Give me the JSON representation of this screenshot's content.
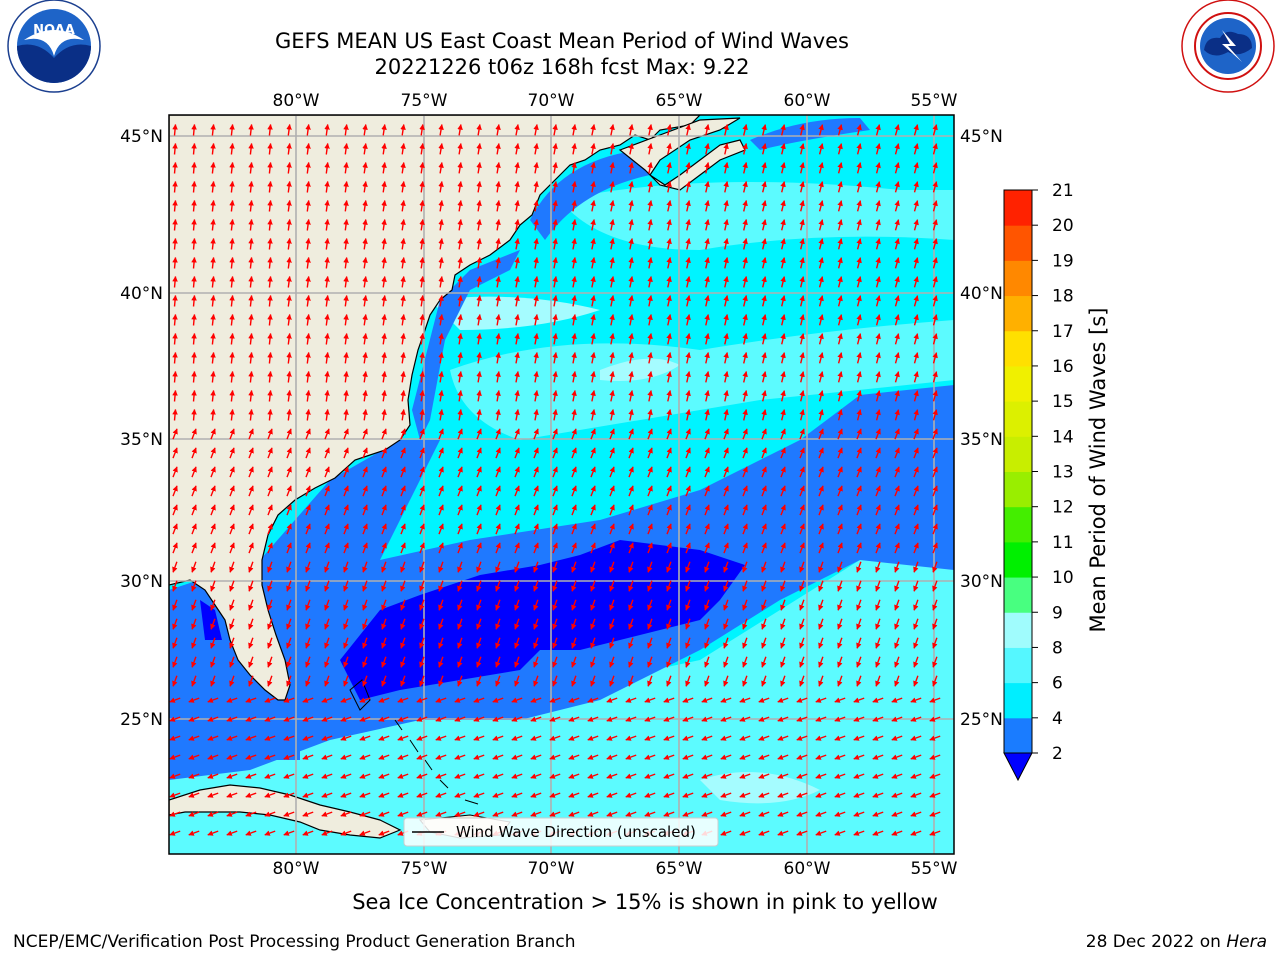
{
  "header": {
    "title_line1": "GEFS MEAN US East Coast Mean Period of Wind Waves",
    "title_line2": "20221226 t06z 168h fcst   Max: 9.22"
  },
  "logos": {
    "left": {
      "text": "NOAA",
      "ring_text": "NATIONAL OCEANIC AND ATMOSPHERIC ADMINISTRATION · U.S. DEPARTMENT OF COMMERCE"
    },
    "right": {
      "ring_text": "NATIONAL WEATHER SERVICE"
    }
  },
  "map": {
    "lon_labels": [
      "80°W",
      "75°W",
      "70°W",
      "65°W",
      "60°W",
      "55°W"
    ],
    "lat_labels": [
      "45°N",
      "40°N",
      "35°N",
      "30°N",
      "25°N"
    ],
    "legend_label": "Wind Wave Direction (unscaled)",
    "colors": {
      "land": "#efedde",
      "ocean_deep_blue": "#0000ff",
      "ocean_blue": "#1f79ff",
      "ocean_cyan": "#00f4ff",
      "ocean_light_cyan": "#5cfbff",
      "ocean_pale": "#a5fcff",
      "arrow": "#ff0000",
      "grid": "#b0b0b0"
    }
  },
  "colorbar": {
    "label": "Mean Period of Wind Waves [s]",
    "ticks": [
      "2",
      "4",
      "6",
      "8",
      "9",
      "10",
      "11",
      "12",
      "13",
      "14",
      "15",
      "16",
      "17",
      "18",
      "19",
      "20",
      "21"
    ],
    "colors": [
      "#1a7cff",
      "#00eeff",
      "#55f7ff",
      "#a0fcfd",
      "#48ff80",
      "#00f000",
      "#44ee00",
      "#99ee00",
      "#c8ee00",
      "#dcf000",
      "#f0f000",
      "#ffe000",
      "#ffb000",
      "#ff8800",
      "#ff5500",
      "#ff2200"
    ],
    "under_color": "#0000ff"
  },
  "notes": {
    "sea_ice": "Sea Ice Concentration > 15% is shown in pink to yellow",
    "footer_left": "NCEP/EMC/Verification Post Processing Product Generation Branch",
    "footer_date": "28 Dec 2022 on ",
    "footer_machine": "Hera"
  }
}
